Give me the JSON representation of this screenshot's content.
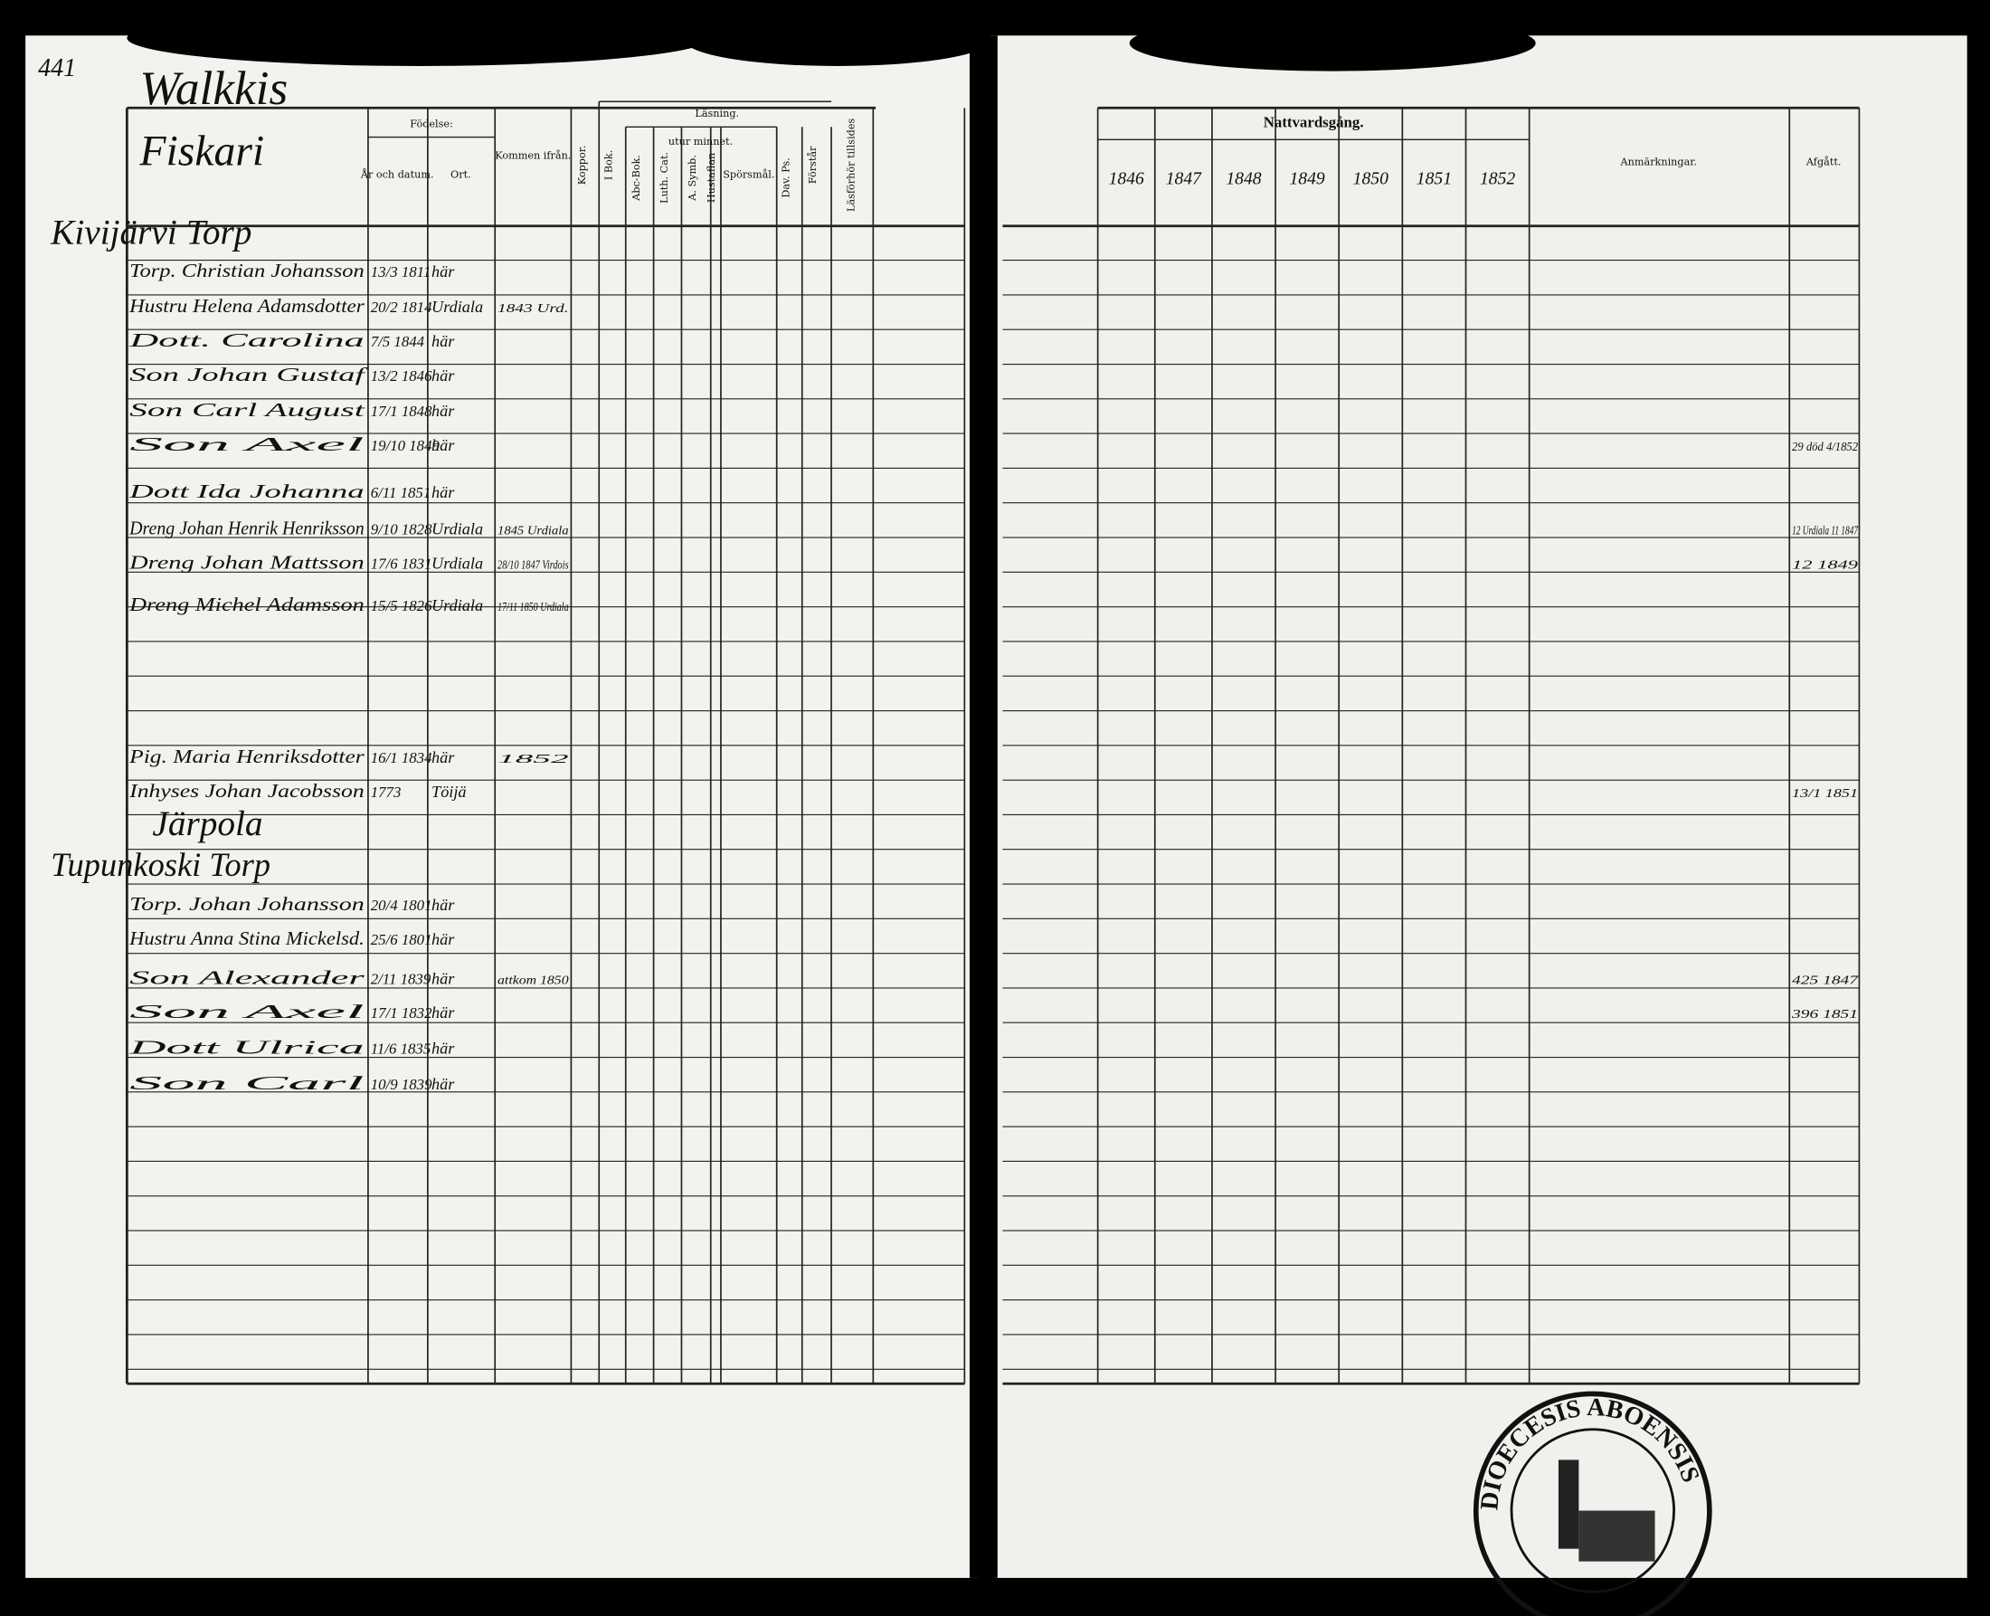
{
  "page_number": "441",
  "parish": "Walkkis",
  "section_title": "Fiskari",
  "left_headers": {
    "birth": "Födelse:",
    "date": "År och datum.",
    "place": "Ort.",
    "from": "Kommen ifrån.",
    "pox": "Koppor.",
    "reading": "Läsning.",
    "by_heart": "utur minnet.",
    "book": "I Bok.",
    "abc": "Abc-Bok.",
    "cat": "Luth. Cat.",
    "symb": "A. Symb.",
    "hust": "Hustaflan",
    "questions": "Spörsmål.",
    "psalms": "Dav. Ps.",
    "understands": "Förstår",
    "hearings": "Läsförhör tillsides"
  },
  "right_headers": {
    "communion": "Nattvardsgång.",
    "years": [
      "1846",
      "1847",
      "1848",
      "1849",
      "1850",
      "1851",
      "1852"
    ],
    "remarks": "Anmärkningar.",
    "departed": "Afgått."
  },
  "sections": [
    {
      "heading": "Kivijärvi Torp",
      "rows": [
        {
          "name": "Torp. Christian Johansson",
          "born": "13/3 1811",
          "place": "här"
        },
        {
          "name": "Hustru Helena Adamsdotter",
          "born": "20/2 1814",
          "place": "Urdiala",
          "from": "1843 Urd."
        },
        {
          "name": "Dott. Carolina",
          "born": "7/5 1844",
          "place": "här"
        },
        {
          "name": "Son Johan Gustaf",
          "born": "13/2 1846",
          "place": "här"
        },
        {
          "name": "Son Carl August",
          "born": "17/1 1848",
          "place": "här"
        },
        {
          "name": "Son Axel",
          "born": "19/10 1849",
          "place": "här",
          "departed": "29 död 4/1852"
        },
        {
          "name": "Dott Ida Johanna",
          "born": "6/11 1851",
          "place": "här"
        },
        {
          "name": "Dreng Johan Henrik Henriksson",
          "born": "9/10 1828",
          "place": "Urdiala",
          "from": "1845 Urdiala",
          "departed": "12 Urdiala 11 1847"
        },
        {
          "name": "Dreng Johan Mattsson",
          "born": "17/6 1831",
          "place": "Urdiala",
          "from": "28/10 1847 Virdois",
          "departed": "12 1849"
        },
        {
          "name": "Dreng Michel Adamsson",
          "born": "15/5 1826",
          "place": "Urdiala",
          "from": "17/11 1850 Urdiala"
        },
        {
          "name": "Pig. Maria Henriksdotter",
          "born": "16/1 1834",
          "place": "här",
          "from": "1852"
        },
        {
          "name": "Inhyses Johan Jacobsson",
          "born": "1773",
          "place": "Töijä",
          "departed": "13/1 1851"
        }
      ]
    },
    {
      "heading": "Järpola",
      "subheading": "Tupunkoski Torp",
      "rows": [
        {
          "name": "Torp. Johan Johansson",
          "born": "20/4 1801",
          "place": "här"
        },
        {
          "name": "Hustru Anna Stina Mickelsd.",
          "born": "25/6 1801",
          "place": "här"
        },
        {
          "name": "Son Alexander",
          "born": "2/11 1839",
          "place": "här",
          "from": "attkom 1850",
          "departed": "425 1847"
        },
        {
          "name": "Son Axel",
          "born": "17/1 1832",
          "place": "här",
          "departed": "396 1851"
        },
        {
          "name": "Dott Ulrica",
          "born": "11/6 1835",
          "place": "här"
        },
        {
          "name": "Son Carl",
          "born": "10/9 1839",
          "place": "här"
        }
      ]
    }
  ],
  "stamp": "DIOECESIS ABOENSIS"
}
